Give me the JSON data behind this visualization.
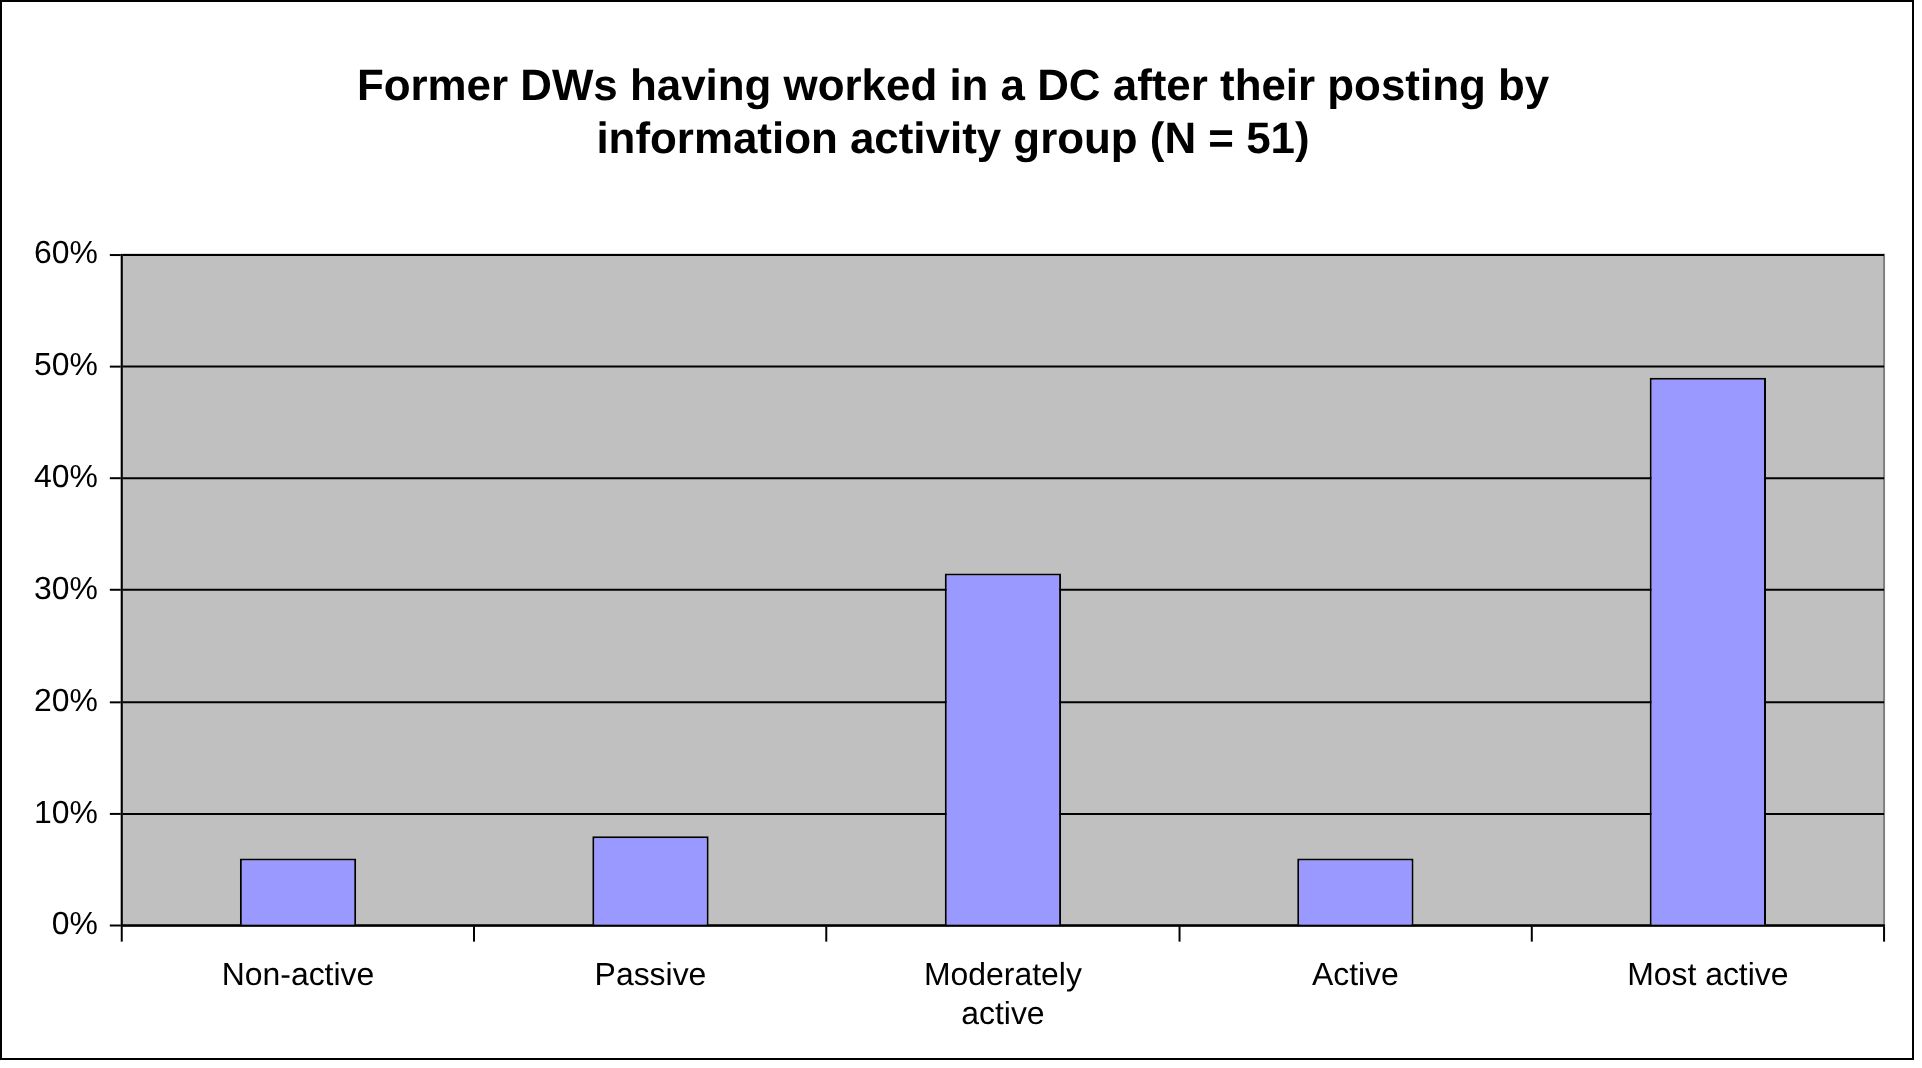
{
  "chart_data": {
    "type": "bar",
    "title": "Former DWs having worked in a DC after their posting by information activity group (N = 51)",
    "categories": [
      "Non-active",
      "Passive",
      "Moderately active",
      "Active",
      "Most active"
    ],
    "values": [
      6,
      8,
      31.5,
      6,
      49
    ],
    "color": "#9999ff",
    "ylim": [
      0,
      60
    ],
    "yticks": [
      {
        "value": 0,
        "label": "0%"
      },
      {
        "value": 10,
        "label": "10%"
      },
      {
        "value": 20,
        "label": "20%"
      },
      {
        "value": 30,
        "label": "30%"
      },
      {
        "value": 40,
        "label": "40%"
      },
      {
        "value": 50,
        "label": "50%"
      },
      {
        "value": 60,
        "label": "60%"
      }
    ],
    "grid": "y",
    "legend": false
  }
}
